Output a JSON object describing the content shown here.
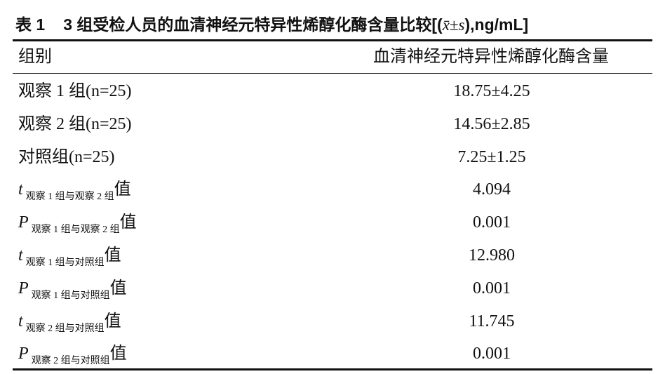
{
  "title": {
    "label": "表 1",
    "text": "3 组受检人员的血清神经元特异性烯醇化酶含量比较[(",
    "math": "x̄±s",
    "tail": "),ng/mL]"
  },
  "table": {
    "header": [
      "组别",
      "血清神经元特异性烯醇化酶含量"
    ],
    "rows": [
      [
        {
          "text": "观察 1 组(n=25)"
        },
        "18.75±4.25"
      ],
      [
        {
          "text": "观察 2 组(n=25)"
        },
        "14.56±2.85"
      ],
      [
        {
          "text": "对照组(n=25)"
        },
        "7.25±1.25"
      ],
      [
        {
          "var": "t",
          "sub": "观察 1 组与观察 2 组",
          "suffix": "值"
        },
        "4.094"
      ],
      [
        {
          "var": "P",
          "sub": "观察 1 组与观察 2 组",
          "suffix": "值"
        },
        "0.001"
      ],
      [
        {
          "var": "t",
          "sub": "观察 1 组与对照组",
          "suffix": "值"
        },
        "12.980"
      ],
      [
        {
          "var": "P",
          "sub": "观察 1 组与对照组",
          "suffix": "值"
        },
        "0.001"
      ],
      [
        {
          "var": "t",
          "sub": "观察 2 组与对照组",
          "suffix": "值"
        },
        "11.745"
      ],
      [
        {
          "var": "P",
          "sub": "观察 2 组与对照组",
          "suffix": "值"
        },
        "0.001"
      ]
    ]
  }
}
